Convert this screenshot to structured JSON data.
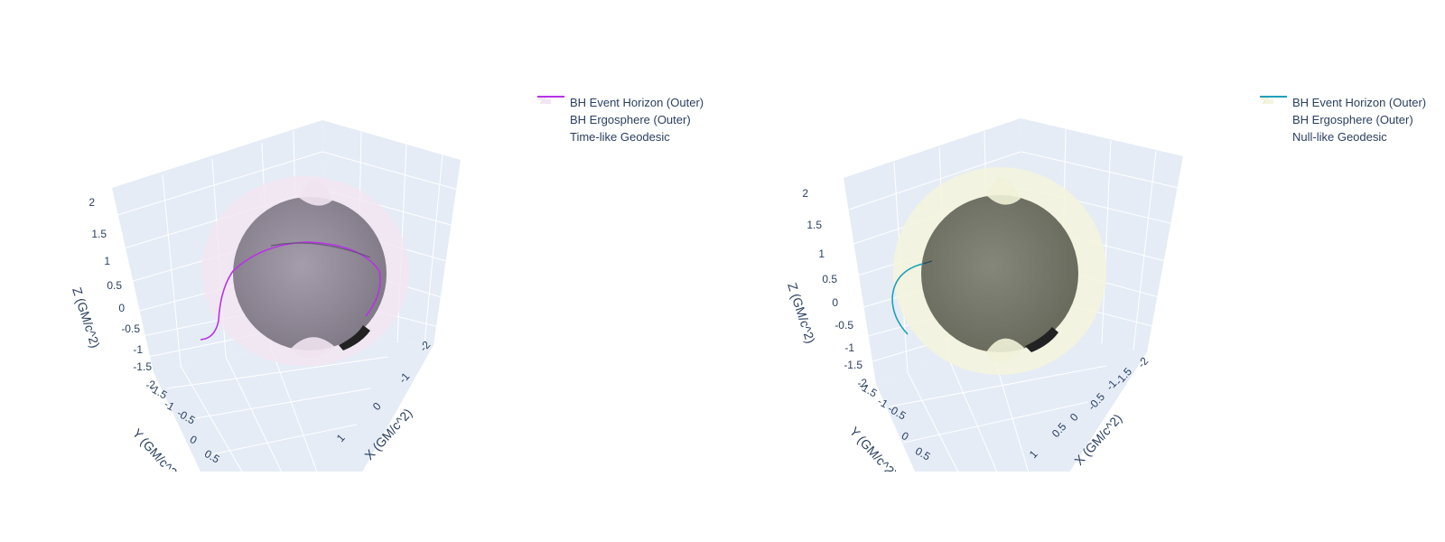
{
  "chart_data": [
    {
      "type": "surface3d",
      "legend": [
        "BH Event Horizon (Outer)",
        "BH Ergosphere (Outer)",
        "Time-like Geodesic"
      ],
      "axes": {
        "x": {
          "label": "X (GM/c^2)",
          "ticks": [
            "-2",
            "-1",
            "0",
            "1"
          ]
        },
        "y": {
          "label": "Y (GM/c^2)",
          "ticks": [
            "-1.5",
            "-1",
            "-0.5",
            "0",
            "0.5"
          ]
        },
        "z": {
          "label": "Z (GM/c^2)",
          "ticks": [
            "2",
            "1.5",
            "1",
            "0.5",
            "0",
            "-0.5",
            "-1",
            "-1.5",
            "-2"
          ]
        }
      },
      "colors": {
        "horizon": "#8f8793",
        "ergosphere": "#f3e6f3",
        "geodesic": "#b832e6"
      }
    },
    {
      "type": "surface3d",
      "legend": [
        "BH Event Horizon (Outer)",
        "BH Ergosphere (Outer)",
        "Null-like Geodesic"
      ],
      "axes": {
        "x": {
          "label": "X (GM/c^2)",
          "ticks": [
            "-2",
            "-1.5",
            "-1",
            "-0.5",
            "0",
            "0.5",
            "1"
          ]
        },
        "y": {
          "label": "Y (GM/c^2)",
          "ticks": [
            "-1.5",
            "-1",
            "-0.5",
            "0",
            "0.5"
          ]
        },
        "z": {
          "label": "Z (GM/c^2)",
          "ticks": [
            "2",
            "1.5",
            "1",
            "0.5",
            "0",
            "-0.5",
            "-1",
            "-1.5",
            "-2"
          ]
        }
      },
      "colors": {
        "horizon": "#747766",
        "ergosphere": "#f4f5dc",
        "geodesic": "#1f9fb8"
      }
    }
  ]
}
